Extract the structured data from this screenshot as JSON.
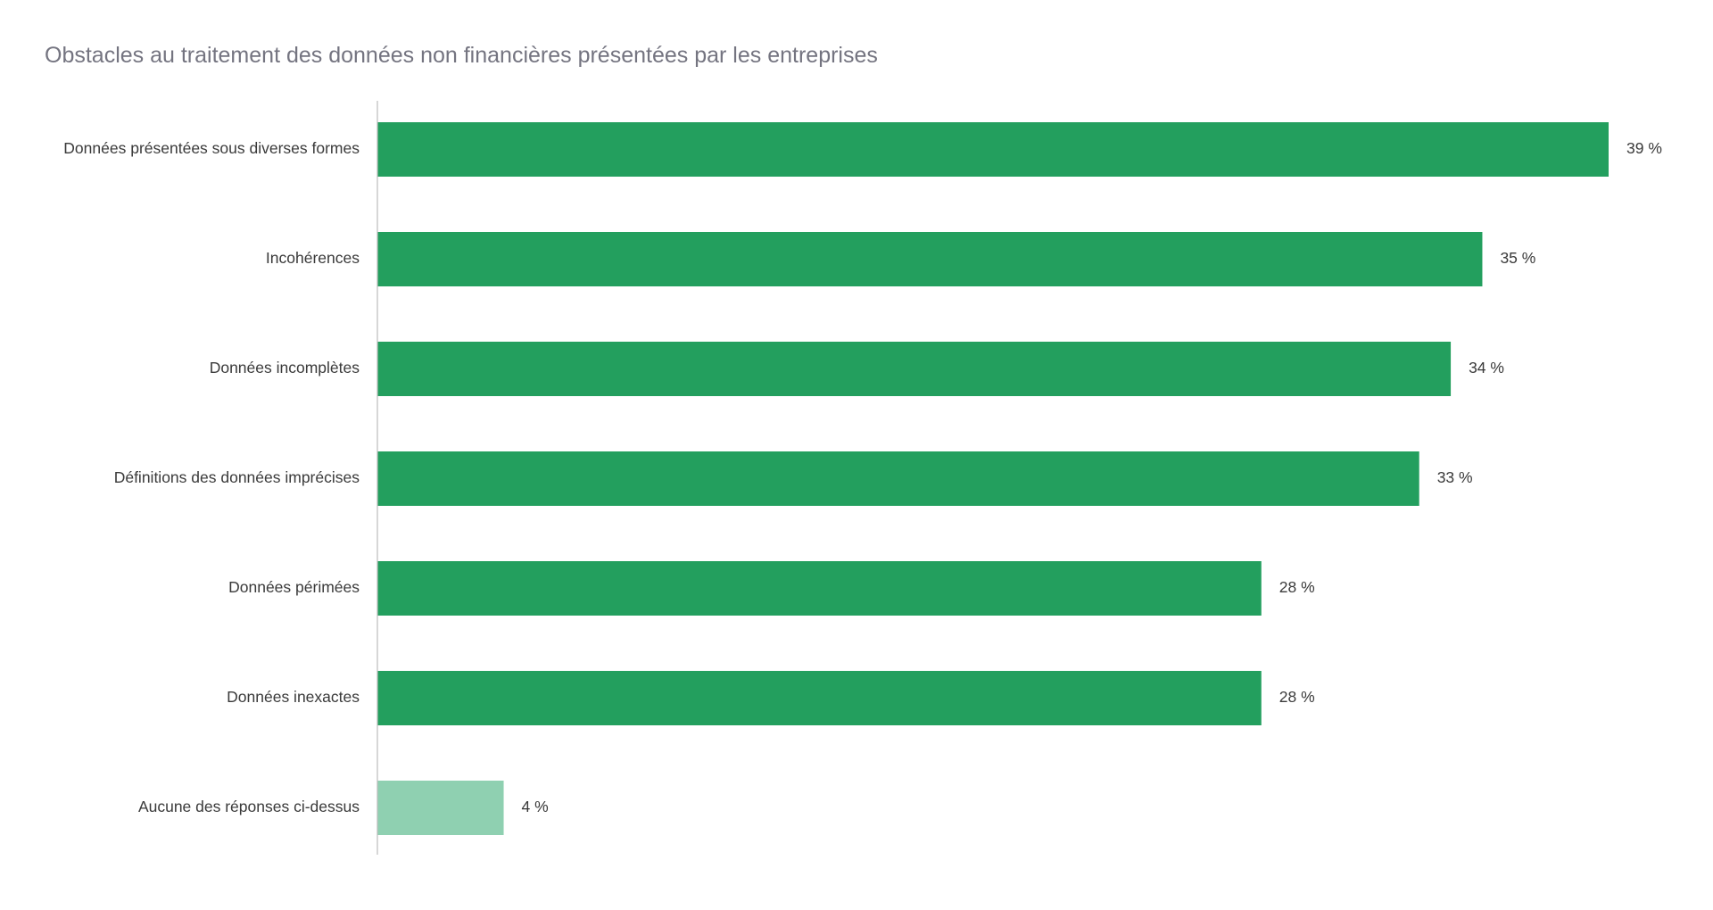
{
  "chart_data": {
    "type": "bar",
    "orientation": "horizontal",
    "title": "Obstacles au traitement des données non financières présentées par les entreprises",
    "categories": [
      "Données présentées sous diverses formes",
      "Incohérences",
      "Données incomplètes",
      "Définitions des données imprécises",
      "Données périmées",
      "Données inexactes",
      "Aucune des réponses ci-dessus"
    ],
    "values": [
      39,
      35,
      34,
      33,
      28,
      28,
      4
    ],
    "value_labels": [
      "39 %",
      "35 %",
      "34 %",
      "33 %",
      "28 %",
      "28 %",
      "4 %"
    ],
    "unit": "%",
    "xlim": [
      0,
      39
    ],
    "grid": false,
    "legend": "none",
    "colors": {
      "primary": "#239f5e",
      "highlight_last": "#8fd0b1",
      "axis": "#bcbcbc"
    }
  }
}
